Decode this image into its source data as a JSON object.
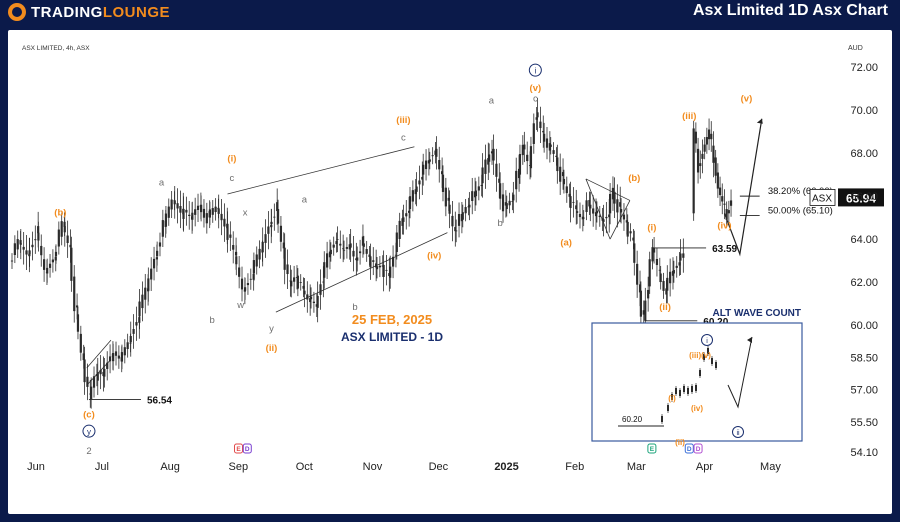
{
  "header": {
    "brand_prefix": "TRADING",
    "brand_suffix": "LOUNGE",
    "title": "Asx Limited 1D Asx Chart"
  },
  "chart_data": {
    "type": "candlestick",
    "symbol_label": "ASX LIMITED, 4h, ASX",
    "currency": "AUD",
    "center_date": "25 FEB, 2025",
    "center_title": "ASX LIMITED - 1D",
    "ylim": [
      54.0,
      72.8
    ],
    "y_ticks": [
      "72.00",
      "70.00",
      "68.00",
      "66.00",
      "64.00",
      "62.00",
      "60.00",
      "58.50",
      "57.00",
      "55.50",
      "54.10"
    ],
    "x_ticks": [
      "Jun",
      "Jul",
      "Aug",
      "Sep",
      "Oct",
      "Nov",
      "Dec",
      "2025",
      "Feb",
      "Mar",
      "Apr",
      "May"
    ],
    "last_price": {
      "label": "ASX",
      "value": "65.94"
    },
    "price_levels": [
      {
        "label": "56.54",
        "value": 56.54
      },
      {
        "label": "63.59",
        "value": 63.59
      },
      {
        "label": "60.20",
        "value": 60.2
      }
    ],
    "fib_levels": [
      {
        "label": "38.20% (66.00)",
        "value": 66.0
      },
      {
        "label": "50.00% (65.10)",
        "value": 65.1
      }
    ],
    "price_path": [
      [
        0,
        63.0
      ],
      [
        4,
        63.8
      ],
      [
        8,
        63.3
      ],
      [
        12,
        64.3
      ],
      [
        16,
        62.4
      ],
      [
        20,
        63.2
      ],
      [
        24,
        64.6
      ],
      [
        27,
        63.6
      ],
      [
        30,
        60.5
      ],
      [
        33,
        58.4
      ],
      [
        36,
        56.54
      ],
      [
        39,
        57.8
      ],
      [
        42,
        57.6
      ],
      [
        46,
        58.7
      ],
      [
        50,
        58.3
      ],
      [
        54,
        59.2
      ],
      [
        58,
        60.4
      ],
      [
        62,
        61.6
      ],
      [
        66,
        63.2
      ],
      [
        70,
        64.6
      ],
      [
        74,
        65.8
      ],
      [
        78,
        65.4
      ],
      [
        82,
        64.9
      ],
      [
        86,
        65.6
      ],
      [
        90,
        65.0
      ],
      [
        94,
        65.4
      ],
      [
        98,
        64.7
      ],
      [
        102,
        63.2
      ],
      [
        106,
        61.6
      ],
      [
        110,
        62.4
      ],
      [
        114,
        63.4
      ],
      [
        118,
        64.7
      ],
      [
        121,
        65.4
      ],
      [
        124,
        63.6
      ],
      [
        127,
        61.8
      ],
      [
        130,
        62.3
      ],
      [
        133,
        61.6
      ],
      [
        136,
        61.2
      ],
      [
        139,
        60.8
      ],
      [
        142,
        62.2
      ],
      [
        145,
        63.3
      ],
      [
        148,
        64.0
      ],
      [
        151,
        63.5
      ],
      [
        154,
        63.8
      ],
      [
        157,
        63.0
      ],
      [
        160,
        63.8
      ],
      [
        163,
        63.2
      ],
      [
        166,
        62.6
      ],
      [
        169,
        62.8
      ],
      [
        172,
        62.2
      ],
      [
        175,
        63.4
      ],
      [
        178,
        64.8
      ],
      [
        181,
        65.4
      ],
      [
        184,
        66.2
      ],
      [
        187,
        67.0
      ],
      [
        190,
        67.6
      ],
      [
        193,
        68.2
      ],
      [
        196,
        67.0
      ],
      [
        199,
        65.6
      ],
      [
        202,
        64.4
      ],
      [
        205,
        64.9
      ],
      [
        208,
        65.6
      ],
      [
        211,
        66.0
      ],
      [
        214,
        66.6
      ],
      [
        217,
        67.6
      ],
      [
        219,
        68.2
      ],
      [
        222,
        66.6
      ],
      [
        225,
        65.4
      ],
      [
        228,
        65.8
      ],
      [
        231,
        67.0
      ],
      [
        233,
        68.4
      ],
      [
        236,
        67.3
      ],
      [
        239,
        69.9
      ],
      [
        242,
        68.9
      ],
      [
        245,
        68.4
      ],
      [
        248,
        67.8
      ],
      [
        251,
        66.8
      ],
      [
        254,
        66.0
      ],
      [
        257,
        65.3
      ],
      [
        260,
        65.0
      ],
      [
        263,
        65.6
      ],
      [
        266,
        65.2
      ],
      [
        269,
        64.8
      ],
      [
        272,
        65.2
      ],
      [
        274,
        66.2
      ],
      [
        277,
        65.4
      ],
      [
        280,
        64.8
      ],
      [
        283,
        63.8
      ],
      [
        286,
        61.6
      ],
      [
        288,
        60.2
      ],
      [
        290,
        61.8
      ],
      [
        292,
        63.59
      ],
      [
        295,
        62.4
      ],
      [
        298,
        61.6
      ],
      [
        301,
        62.4
      ],
      [
        304,
        63.0
      ],
      [
        306,
        63.2
      ]
    ],
    "gap_path": [
      [
        310,
        65.2
      ],
      [
        311,
        69.0
      ],
      [
        313,
        67.4
      ],
      [
        316,
        68.4
      ],
      [
        318,
        68.9
      ],
      [
        320,
        67.8
      ],
      [
        322,
        66.4
      ],
      [
        324,
        65.6
      ],
      [
        326,
        65.2
      ],
      [
        328,
        65.9
      ]
    ],
    "trend_lines": [
      {
        "x1": 98,
        "y1": 66.1,
        "x2": 183,
        "y2": 68.3
      },
      {
        "x1": 120,
        "y1": 60.6,
        "x2": 198,
        "y2": 64.3
      },
      {
        "x1": 261,
        "y1": 66.8,
        "x2": 281,
        "y2": 65.8
      },
      {
        "x1": 261,
        "y1": 66.8,
        "x2": 272,
        "y2": 64.0
      },
      {
        "x1": 272,
        "y1": 64.0,
        "x2": 281,
        "y2": 65.8
      }
    ],
    "projection": [
      [
        324,
        65.2
      ],
      [
        331,
        63.3
      ],
      [
        341,
        69.6
      ]
    ],
    "wave_labels": [
      {
        "text": "(b)",
        "x": 22,
        "y": 65.1,
        "color": "orange"
      },
      {
        "text": "(c)",
        "x": 35,
        "y": 55.7,
        "color": "orange"
      },
      {
        "text": "y",
        "x": 35,
        "y": 54.9,
        "color": "navy",
        "circle": true
      },
      {
        "text": "2",
        "x": 35,
        "y": 54.0,
        "color": "gray"
      },
      {
        "text": "a",
        "x": 68,
        "y": 66.5,
        "color": "gray"
      },
      {
        "text": "b",
        "x": 91,
        "y": 60.1,
        "color": "gray"
      },
      {
        "text": "(i)",
        "x": 100,
        "y": 67.6,
        "color": "orange"
      },
      {
        "text": "c",
        "x": 100,
        "y": 66.7,
        "color": "gray"
      },
      {
        "text": "x",
        "x": 106,
        "y": 65.1,
        "color": "gray"
      },
      {
        "text": "w",
        "x": 104,
        "y": 60.8,
        "color": "gray"
      },
      {
        "text": "a",
        "x": 133,
        "y": 65.7,
        "color": "gray"
      },
      {
        "text": "y",
        "x": 118,
        "y": 59.7,
        "color": "gray"
      },
      {
        "text": "(ii)",
        "x": 118,
        "y": 58.8,
        "color": "orange"
      },
      {
        "text": "b",
        "x": 156,
        "y": 60.7,
        "color": "gray"
      },
      {
        "text": "(iii)",
        "x": 178,
        "y": 69.4,
        "color": "orange"
      },
      {
        "text": "c",
        "x": 178,
        "y": 68.6,
        "color": "gray"
      },
      {
        "text": "(iv)",
        "x": 192,
        "y": 63.1,
        "color": "orange"
      },
      {
        "text": "a",
        "x": 218,
        "y": 70.3,
        "color": "gray"
      },
      {
        "text": "b",
        "x": 222,
        "y": 64.6,
        "color": "gray"
      },
      {
        "text": "i",
        "x": 238,
        "y": 71.7,
        "color": "navy",
        "circle": true
      },
      {
        "text": "(v)",
        "x": 238,
        "y": 70.9,
        "color": "orange"
      },
      {
        "text": "c",
        "x": 238,
        "y": 70.4,
        "color": "gray"
      },
      {
        "text": "(a)",
        "x": 252,
        "y": 63.7,
        "color": "orange"
      },
      {
        "text": "(b)",
        "x": 283,
        "y": 66.7,
        "color": "orange"
      },
      {
        "text": "(i)",
        "x": 291,
        "y": 64.4,
        "color": "orange"
      },
      {
        "text": "(ii)",
        "x": 297,
        "y": 60.7,
        "color": "orange"
      },
      {
        "text": "(c)",
        "x": 285,
        "y": 59.5,
        "color": "orange"
      },
      {
        "text": "ii",
        "x": 285,
        "y": 58.9,
        "color": "navy",
        "circle": true
      },
      {
        "text": "(iii)",
        "x": 308,
        "y": 69.6,
        "color": "orange"
      },
      {
        "text": "(iv)",
        "x": 324,
        "y": 64.5,
        "color": "orange"
      },
      {
        "text": "(v)",
        "x": 334,
        "y": 70.4,
        "color": "orange"
      }
    ],
    "alt_inset": {
      "title": "ALT WAVE COUNT",
      "level_label": "60.20",
      "labels": [
        {
          "text": "i",
          "x": 115,
          "y": 20,
          "color": "navy",
          "circle": true
        },
        {
          "text": "(iii)(v)",
          "x": 108,
          "y": 35,
          "color": "orange"
        },
        {
          "text": "(i)",
          "x": 80,
          "y": 78,
          "color": "orange"
        },
        {
          "text": "(iv)",
          "x": 105,
          "y": 88,
          "color": "orange"
        },
        {
          "text": "(ii)",
          "x": 88,
          "y": 122,
          "color": "orange"
        },
        {
          "text": "ii",
          "x": 146,
          "y": 112,
          "color": "navy",
          "circle": true
        }
      ]
    },
    "events": [
      {
        "text": "E",
        "x": 103,
        "color": "#e24a4a"
      },
      {
        "text": "D",
        "x": 107,
        "color": "#7a3fd0"
      },
      {
        "text": "E",
        "x": 291,
        "color": "#1aa37a"
      },
      {
        "text": "D",
        "x": 308,
        "color": "#3a6fd8"
      },
      {
        "text": "D",
        "x": 312,
        "color": "#b04fd0"
      }
    ],
    "colors": {
      "orange": "#f28c1e",
      "navy": "#1a2f6e",
      "gray": "#6e6e6e",
      "candle": "#2b2b2b"
    }
  }
}
